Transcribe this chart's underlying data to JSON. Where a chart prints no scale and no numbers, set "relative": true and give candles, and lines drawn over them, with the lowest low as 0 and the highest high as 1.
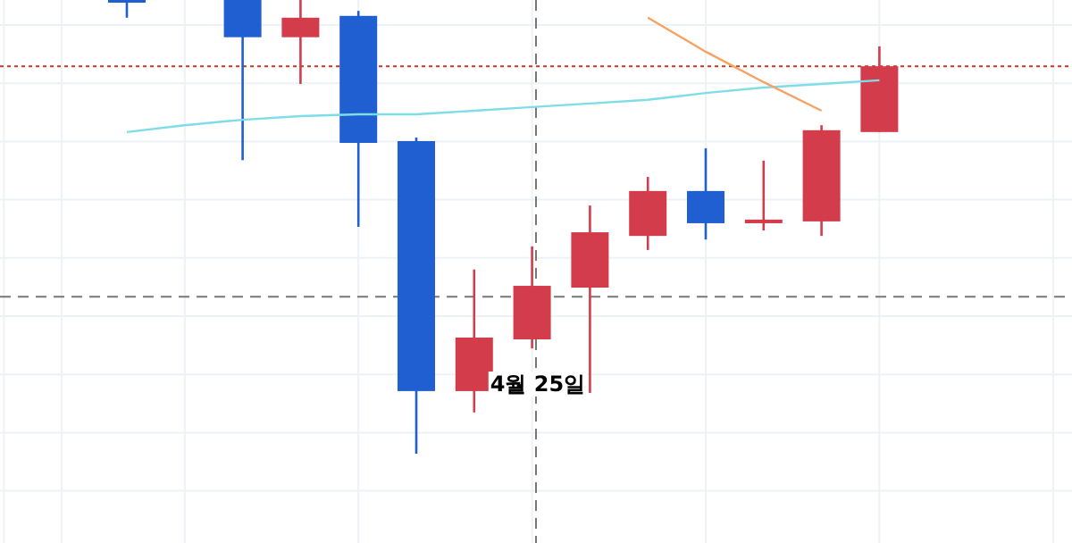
{
  "chart_data": {
    "type": "candlestick",
    "relative": true,
    "grid": true,
    "categories": [
      null,
      null,
      null,
      null,
      null,
      null,
      null,
      null,
      null,
      null,
      null,
      null,
      null,
      null
    ],
    "ohlc": [
      [
        1,
        1,
        0.961,
        1
      ],
      null,
      [
        1,
        1,
        0.647,
        0.918
      ],
      [
        0.918,
        1,
        0.815,
        0.961
      ],
      [
        0.965,
        0.976,
        0.5,
        0.685
      ],
      [
        0.689,
        0.697,
        0,
        0.138
      ],
      [
        0.138,
        0.406,
        0.091,
        0.256
      ],
      [
        0.252,
        0.457,
        0.232,
        0.37
      ],
      [
        0.366,
        0.547,
        0.134,
        0.488
      ],
      [
        0.48,
        0.61,
        0.449,
        0.579
      ],
      [
        0.579,
        0.673,
        0.472,
        0.508
      ],
      [
        0.508,
        0.646,
        0.492,
        0.516
      ],
      [
        0.512,
        0.724,
        0.48,
        0.713
      ],
      [
        0.709,
        0.898,
        0.709,
        0.854
      ]
    ],
    "colors": [
      "#1f5fd1",
      null,
      "#1f5fd1",
      "#d33c4b",
      "#1f5fd1",
      "#1f5fd1",
      "#d33c4b",
      "#d33c4b",
      "#d33c4b",
      "#d33c4b",
      "#1f5fd1",
      "#d33c4b",
      "#d33c4b",
      "#d33c4b"
    ],
    "series": [
      {
        "type": "line",
        "color": "#7fdde8",
        "values": [
          0.709,
          0.724,
          0.736,
          0.744,
          0.748,
          0.748,
          0.756,
          0.764,
          0.772,
          0.78,
          0.795,
          0.807,
          0.815,
          0.823
        ]
      },
      {
        "type": "line",
        "color": "#f5a263",
        "values": [
          null,
          null,
          null,
          null,
          null,
          null,
          null,
          null,
          null,
          0.961,
          0.886,
          0.819,
          0.756,
          null
        ]
      }
    ],
    "ref_lines": [
      {
        "axis": "y",
        "value": 0.854,
        "color": "#c0392b",
        "line_style": "dotted"
      },
      {
        "axis": "y",
        "value": 0.346,
        "color": "#777777",
        "line_style": "dashed"
      }
    ],
    "annotations": [
      "4월 25일"
    ]
  }
}
